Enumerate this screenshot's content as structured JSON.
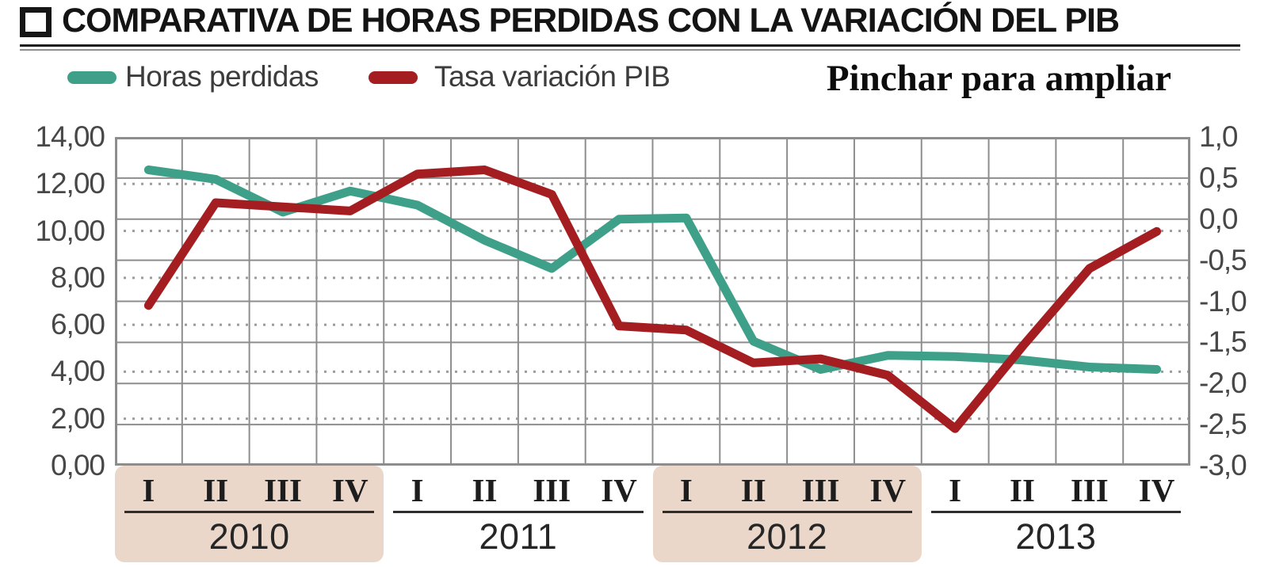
{
  "header": {
    "title": "COMPARATIVA DE HORAS PERDIDAS CON LA VARIACIÓN DEL PIB"
  },
  "legend": {
    "items": [
      {
        "label": "Horas perdidas",
        "color": "#3FA08A"
      },
      {
        "label": "Tasa variación PIB",
        "color": "#A41E21"
      }
    ]
  },
  "note": {
    "text": "Pinchar para ampliar"
  },
  "chart_data": {
    "type": "line",
    "title": "Comparativa de horas perdidas con la variación del PIB",
    "categories": [
      "2010 I",
      "2010 II",
      "2010 III",
      "2010 IV",
      "2011 I",
      "2011 II",
      "2011 III",
      "2011 IV",
      "2012 I",
      "2012 II",
      "2012 III",
      "2012 IV",
      "2013 I",
      "2013 II",
      "2013 III",
      "2013 IV"
    ],
    "x_axis": {
      "quarters_per_year": [
        "I",
        "II",
        "III",
        "IV"
      ],
      "years": [
        {
          "label": "2010",
          "highlighted": true
        },
        {
          "label": "2011",
          "highlighted": false
        },
        {
          "label": "2012",
          "highlighted": true
        },
        {
          "label": "2013",
          "highlighted": false
        }
      ]
    },
    "left_axis": {
      "min": 0,
      "max": 14,
      "ticks": [
        "14,00",
        "12,00",
        "10,00",
        "8,00",
        "6,00",
        "4,00",
        "2,00",
        "0,00"
      ]
    },
    "right_axis": {
      "min": -3,
      "max": 1,
      "ticks": [
        "1,0",
        "0,5",
        "0,0",
        "-0,5",
        "-1,0",
        "-1,5",
        "-2,0",
        "-2,5",
        "-3,0"
      ]
    },
    "grid": {
      "vertical_per_quarter": true,
      "solid_horizontal_step_right_axis": 0.5,
      "dotted_horizontal_step_left_axis": 2
    },
    "series": [
      {
        "name": "Horas perdidas",
        "axis": "left",
        "color": "#3FA08A",
        "values": [
          12.6,
          12.2,
          10.8,
          11.7,
          11.1,
          9.6,
          8.4,
          10.5,
          10.55,
          5.3,
          4.1,
          4.7,
          4.65,
          4.5,
          4.2,
          4.1
        ]
      },
      {
        "name": "Tasa variación PIB",
        "axis": "right",
        "color": "#A41E21",
        "values": [
          -1.05,
          0.2,
          0.15,
          0.1,
          0.55,
          0.6,
          0.3,
          -1.3,
          -1.35,
          -1.75,
          -1.7,
          -1.9,
          -2.55,
          -1.55,
          -0.6,
          -0.15
        ]
      }
    ],
    "highlight_band_color": "#EAD7CA",
    "legend_position": "top-left",
    "grid_colors": {
      "solid": "#8d8d8d",
      "dotted": "#9c9c9c"
    }
  }
}
